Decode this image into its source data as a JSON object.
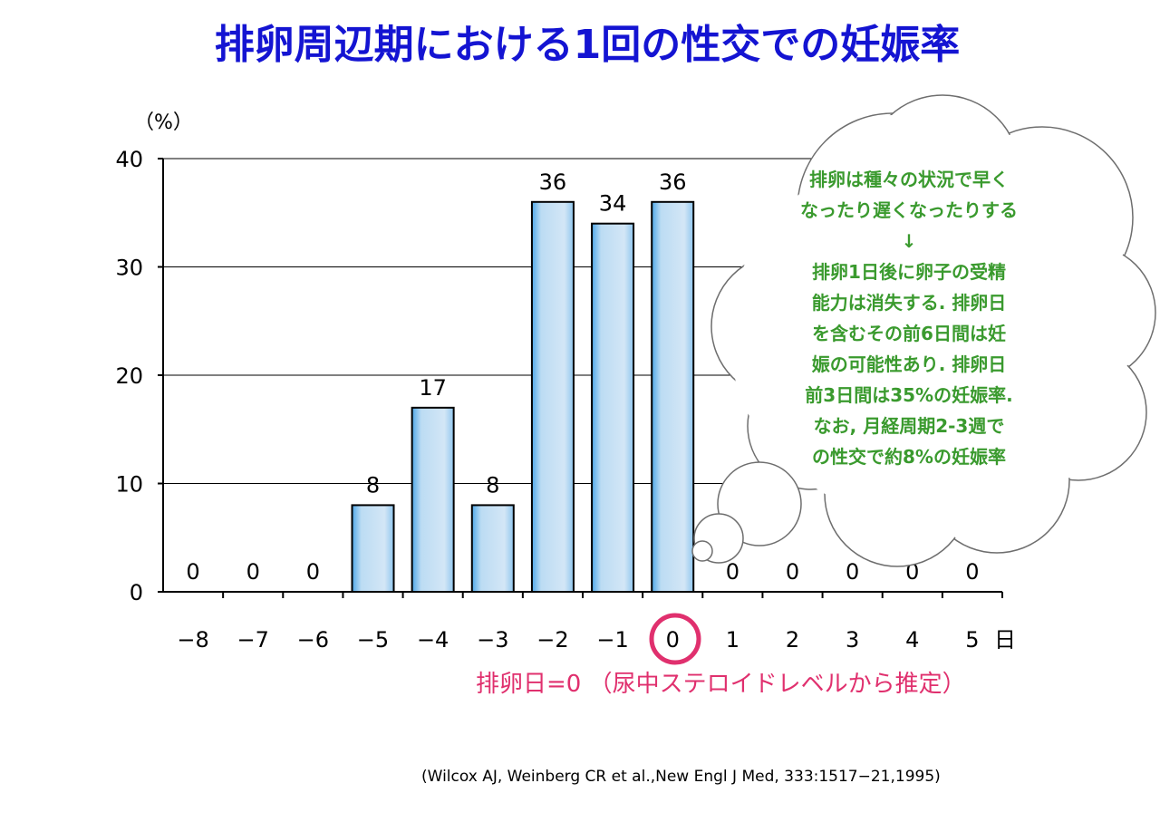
{
  "title": "排卵周辺期における1回の性交での妊娠率",
  "chart_data": {
    "type": "bar",
    "title": "排卵周辺期における1回の性交での妊娠率",
    "ylabel": "（%）",
    "xlabel": "日",
    "ylim": [
      0,
      40
    ],
    "yticks": [
      0,
      10,
      20,
      30,
      40
    ],
    "grid": true,
    "categories": [
      "−8",
      "−7",
      "−6",
      "−5",
      "−4",
      "−3",
      "−2",
      "−1",
      "0",
      "1",
      "2",
      "3",
      "4",
      "5"
    ],
    "values": [
      0,
      0,
      0,
      8,
      17,
      8,
      36,
      34,
      36,
      0,
      0,
      0,
      0,
      0
    ],
    "highlight_category": "0",
    "colors": {
      "bar_fill_light": "#cde3f5",
      "bar_fill_dark": "#4fa8e8",
      "highlight": "#e0306e"
    }
  },
  "ovulation_note": "排卵日=0 （尿中ステロイドレベルから推定）",
  "citation": "(Wilcox AJ, Weinberg CR et al.,New Engl J Med, 333:1517−21,1995)",
  "thought_bubble": {
    "lines": [
      "排卵は種々の状況で早く",
      "なったり遅くなったりする",
      "↓",
      "排卵1日後に卵子の受精",
      "能力は消失する. 排卵日",
      "を含むその前6日間は妊",
      "娠の可能性あり. 排卵日",
      "前3日間は35%の妊娠率.",
      "なお, 月経周期2-3週で",
      "の性交で約8%の妊娠率"
    ],
    "text_color": "#3a9a2e"
  },
  "colors": {
    "title": "#1414d2"
  }
}
